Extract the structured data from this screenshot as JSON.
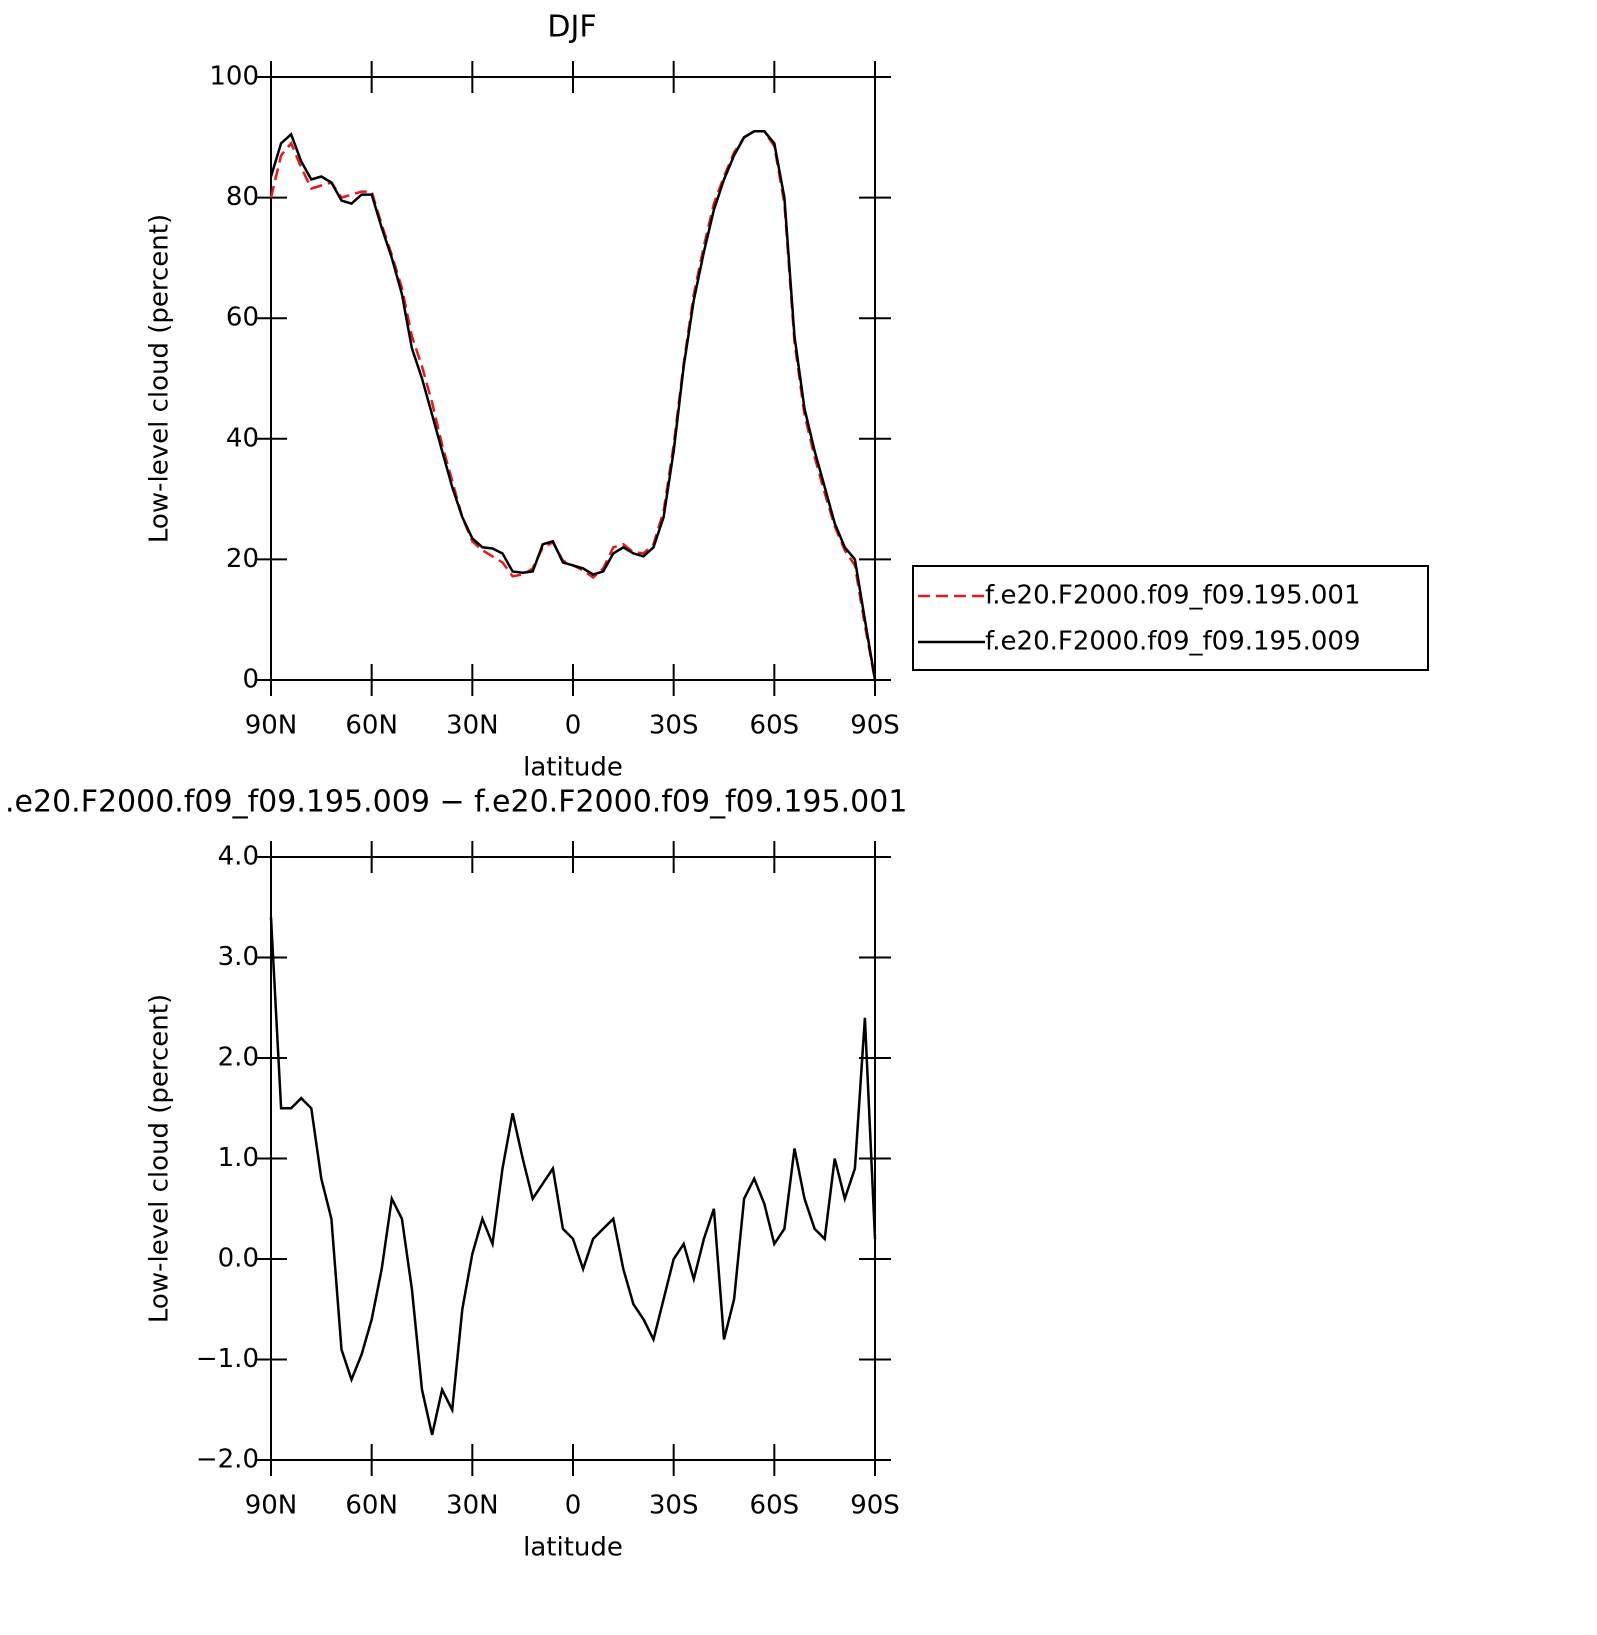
{
  "chart_data": [
    {
      "type": "line",
      "title": "DJF",
      "xlabel": "latitude",
      "ylabel": "Low-level cloud (percent)",
      "x": [
        90,
        87,
        84,
        81,
        78,
        75,
        72,
        69,
        66,
        63,
        60,
        57,
        54,
        51,
        48,
        45,
        42,
        39,
        36,
        33,
        30,
        27,
        24,
        21,
        18,
        15,
        12,
        9,
        6,
        3,
        0,
        -3,
        -6,
        -9,
        -12,
        -15,
        -18,
        -21,
        -24,
        -27,
        -30,
        -33,
        -36,
        -39,
        -42,
        -45,
        -48,
        -51,
        -54,
        -57,
        -60,
        -63,
        -66,
        -69,
        -72,
        -75,
        -78,
        -81,
        -84,
        -87,
        -90
      ],
      "series": [
        {
          "name": "f.e20.F2000.f09_f09.195.001",
          "color": "#e41a1c",
          "dashed": true,
          "values": [
            80,
            87,
            89,
            85,
            81.5,
            82,
            82.5,
            80,
            80.5,
            81,
            81,
            75.5,
            70.5,
            65,
            57,
            52,
            46,
            39,
            33,
            27,
            23,
            21.5,
            20.5,
            19.5,
            17.2,
            17.5,
            18.5,
            22,
            22.8,
            19.8,
            19,
            18.2,
            17,
            18.5,
            22,
            22.5,
            21.2,
            21,
            22.5,
            28,
            39,
            52.5,
            64,
            72,
            79,
            83.5,
            87.5,
            90,
            91,
            91,
            88.5,
            79,
            56,
            44,
            37,
            31,
            25.5,
            21.5,
            19,
            9,
            0
          ]
        },
        {
          "name": "f.e20.F2000.f09_f09.195.009",
          "color": "#000000",
          "dashed": false,
          "values": [
            83.5,
            89,
            90.5,
            86,
            83,
            83.5,
            82.5,
            79.5,
            79,
            80.5,
            80.5,
            75,
            70,
            64,
            55,
            50,
            44,
            38,
            32,
            27,
            23.5,
            22,
            21.8,
            21,
            18,
            17.8,
            18,
            22.5,
            23,
            19.5,
            19,
            18.5,
            17.5,
            18,
            21,
            22,
            21,
            20.5,
            22,
            27,
            38,
            52,
            63,
            71,
            78,
            83,
            87,
            90,
            91,
            91,
            89,
            80,
            57,
            45,
            38,
            32,
            26,
            22,
            20,
            10,
            0
          ]
        }
      ],
      "xlim": [
        90,
        -90
      ],
      "xticks": [
        {
          "value": 90,
          "label": "90N"
        },
        {
          "value": 60,
          "label": "60N"
        },
        {
          "value": 30,
          "label": "30N"
        },
        0,
        {
          "value": -30,
          "label": "30S"
        },
        {
          "value": -60,
          "label": "60S"
        },
        {
          "value": -90,
          "label": "90S"
        }
      ],
      "ylim": [
        0,
        100
      ],
      "yticks": [
        0,
        20,
        40,
        60,
        80,
        100
      ],
      "legend": "right"
    },
    {
      "type": "line",
      "title": ".e20.F2000.f09_f09.195.009 − f.e20.F2000.f09_f09.195.001",
      "xlabel": "latitude",
      "ylabel": "Low-level cloud (percent)",
      "x": [
        90,
        87,
        84,
        81,
        78,
        75,
        72,
        69,
        66,
        63,
        60,
        57,
        54,
        51,
        48,
        45,
        42,
        39,
        36,
        33,
        30,
        27,
        24,
        21,
        18,
        15,
        12,
        9,
        6,
        3,
        0,
        -3,
        -6,
        -9,
        -12,
        -15,
        -18,
        -21,
        -24,
        -27,
        -30,
        -33,
        -36,
        -39,
        -42,
        -45,
        -48,
        -51,
        -54,
        -57,
        -60,
        -63,
        -66,
        -69,
        -72,
        -75,
        -78,
        -81,
        -84,
        -87,
        -90
      ],
      "color": "#000000",
      "values": [
        3.4,
        1.5,
        1.5,
        1.6,
        1.5,
        0.8,
        0.4,
        -0.9,
        -1.2,
        -0.95,
        -0.6,
        -0.1,
        0.6,
        0.4,
        -0.3,
        -1.3,
        -1.75,
        -1.3,
        -1.5,
        -0.5,
        0.05,
        0.4,
        0.15,
        0.9,
        1.45,
        1.0,
        0.6,
        0.75,
        0.9,
        0.3,
        0.2,
        -0.1,
        0.2,
        0.3,
        0.4,
        -0.1,
        -0.45,
        -0.6,
        -0.8,
        -0.4,
        0.0,
        0.15,
        -0.2,
        0.2,
        0.5,
        -0.8,
        -0.4,
        0.6,
        0.8,
        0.55,
        0.15,
        0.3,
        1.1,
        0.6,
        0.3,
        0.2,
        1.0,
        0.6,
        0.9,
        2.4,
        0.2
      ],
      "xlim": [
        90,
        -90
      ],
      "xticks": [
        {
          "value": 90,
          "label": "90N"
        },
        {
          "value": 60,
          "label": "60N"
        },
        {
          "value": 30,
          "label": "30N"
        },
        0,
        {
          "value": -30,
          "label": "30S"
        },
        {
          "value": -60,
          "label": "60S"
        },
        {
          "value": -90,
          "label": "90S"
        }
      ],
      "ylim": [
        -2,
        4
      ],
      "yticks": [
        {
          "value": -2,
          "label": "−2.0"
        },
        {
          "value": -1,
          "label": "−1.0"
        },
        {
          "value": 0,
          "label": "0.0"
        },
        {
          "value": 1,
          "label": "1.0"
        },
        {
          "value": 2,
          "label": "2.0"
        },
        {
          "value": 3,
          "label": "3.0"
        },
        {
          "value": 4,
          "label": "4.0"
        }
      ]
    }
  ]
}
